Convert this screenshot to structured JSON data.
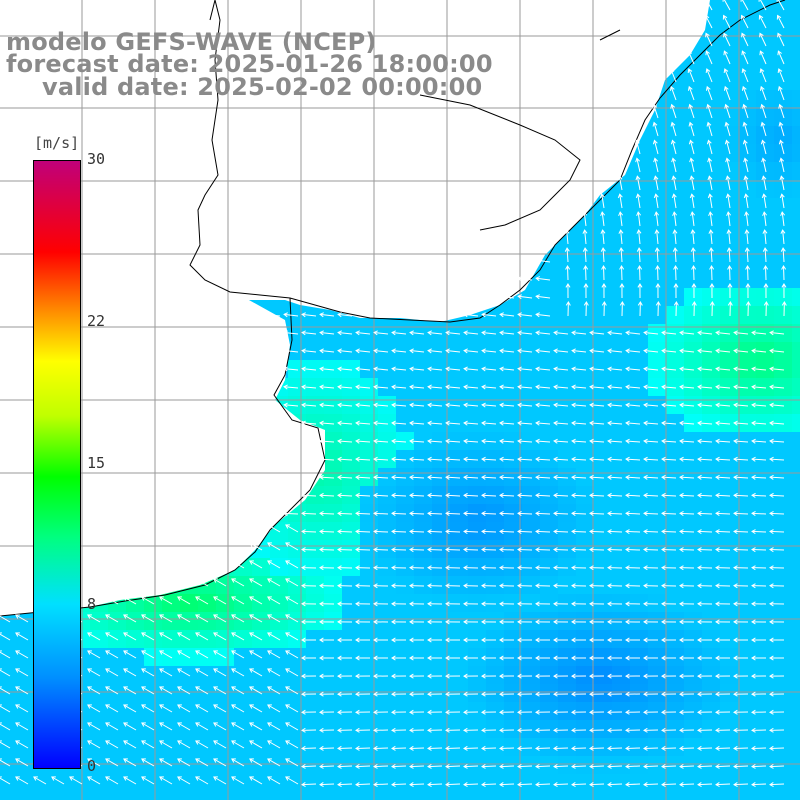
{
  "header": {
    "line1": "modelo GEFS-WAVE (NCEP)",
    "line2": "forecast date: 2025-01-26 18:00:00",
    "line3": "valid date: 2025-02-02 00:00:00"
  },
  "legend": {
    "unit": "[m/s]",
    "ticks": [
      "30",
      "22",
      "15",
      "8",
      "0"
    ],
    "tick_values": [
      30,
      22,
      15,
      8,
      0
    ],
    "range": [
      0,
      30
    ],
    "colors": [
      "#0000ff",
      "#0090ff",
      "#00e0ff",
      "#00ff00",
      "#ffff00",
      "#ff8000",
      "#ff0000",
      "#c0007a"
    ]
  },
  "map": {
    "land_color": "#ffffff",
    "grid_color": "#9a9a9a",
    "coast_color": "#000000",
    "arrow_color": "#ffffff",
    "field_type": "wind speed with direction arrows",
    "dominant_flow": "from east / northeast",
    "grid": "on"
  }
}
